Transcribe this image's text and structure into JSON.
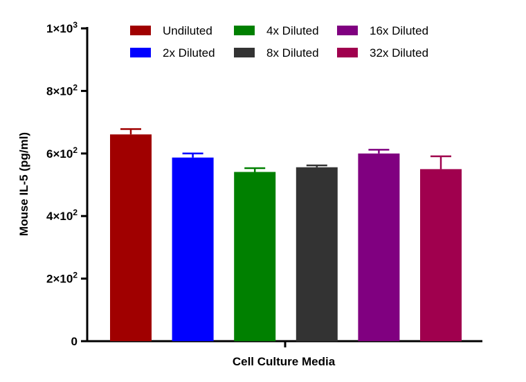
{
  "chart_data": {
    "type": "bar",
    "title": "",
    "xlabel": "Cell  Culture Media",
    "ylabel": "Mouse IL-5 (pg/ml)",
    "ylim": [
      0,
      1000
    ],
    "yticks": [
      0,
      200,
      400,
      600,
      800,
      1000
    ],
    "ytick_labels": [
      {
        "base": "0",
        "exp": ""
      },
      {
        "base": "2×10",
        "exp": "2"
      },
      {
        "base": "4×10",
        "exp": "2"
      },
      {
        "base": "6×10",
        "exp": "2"
      },
      {
        "base": "8×10",
        "exp": "2"
      },
      {
        "base": "1×10",
        "exp": "3"
      }
    ],
    "grid": false,
    "legend_position": "top",
    "series": [
      {
        "name": "Undiluted",
        "value": 661,
        "error": 17,
        "color": "#a00000"
      },
      {
        "name": "2x Diluted",
        "value": 587,
        "error": 13,
        "color": "#0000ff"
      },
      {
        "name": "4x Diluted",
        "value": 541,
        "error": 12,
        "color": "#008000"
      },
      {
        "name": "8x Diluted",
        "value": 556,
        "error": 6,
        "color": "#333333"
      },
      {
        "name": "16x Diluted",
        "value": 600,
        "error": 12,
        "color": "#800080"
      },
      {
        "name": "32x Diluted",
        "value": 550,
        "error": 41,
        "color": "#a0004e"
      }
    ]
  }
}
